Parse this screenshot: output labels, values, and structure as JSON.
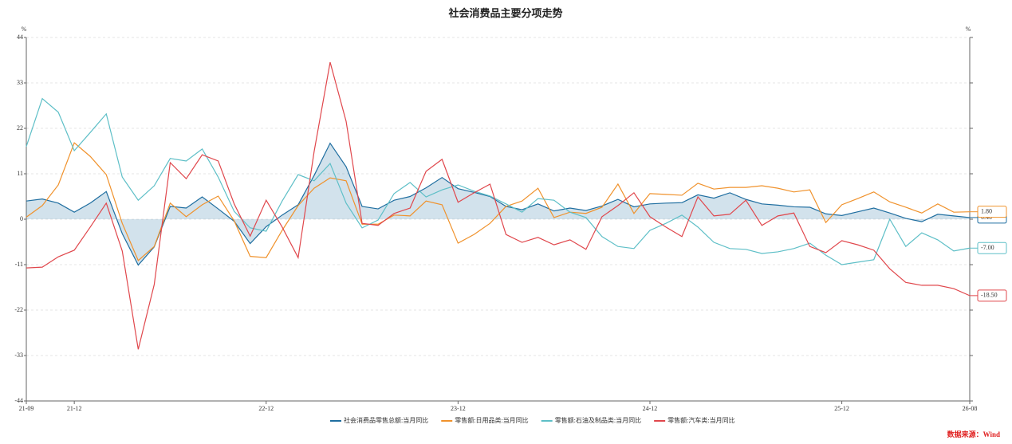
{
  "chart_data": {
    "type": "line",
    "title": "社会消费品主要分项走势",
    "ylabel": "%",
    "y2label": "%",
    "source": "数据来源：Wind",
    "categories": [
      "21-09",
      null,
      null,
      "21-12",
      null,
      null,
      null,
      null,
      null,
      null,
      null,
      null,
      null,
      null,
      null,
      "22-12",
      null,
      null,
      null,
      null,
      null,
      null,
      null,
      null,
      null,
      null,
      null,
      "23-12",
      null,
      null,
      null,
      null,
      null,
      null,
      null,
      null,
      null,
      null,
      null,
      "24-12",
      null,
      null,
      null,
      null,
      null,
      null,
      null,
      null,
      null,
      null,
      null,
      "25-12",
      null,
      null,
      null,
      null,
      null,
      null,
      null,
      "26-08"
    ],
    "ylim": [
      -44,
      44
    ],
    "yticks": [
      -44,
      -33,
      -22,
      -11,
      0,
      11,
      22,
      33,
      44
    ],
    "grid": true,
    "series": [
      {
        "name": "社会消费品零售总额:当月同比",
        "color": "#1f6ea0",
        "area": true,
        "values": [
          4.4,
          4.9,
          3.9,
          1.7,
          3.9,
          6.7,
          -3.5,
          -11.1,
          -6.7,
          3.1,
          2.7,
          5.4,
          2.5,
          -0.5,
          -5.9,
          -1.8,
          1.0,
          3.5,
          10.6,
          18.4,
          12.7,
          3.1,
          2.5,
          4.6,
          5.5,
          7.6,
          10.1,
          7.4,
          6.5,
          5.5,
          3.1,
          2.3,
          3.7,
          2.0,
          2.7,
          2.1,
          3.2,
          4.8,
          3.0,
          3.7,
          3.9,
          4.0,
          5.9,
          5.1,
          6.4,
          4.8,
          3.7,
          3.4,
          3.0,
          2.9,
          1.3,
          0.9,
          1.8,
          2.7,
          1.5,
          0.2,
          -0.6,
          1.2,
          0.8,
          0.4
        ],
        "value_labels": [
          null,
          null,
          null,
          null,
          null,
          null,
          null,
          null,
          null,
          null,
          null,
          null,
          null,
          null,
          null,
          null,
          null,
          null,
          null,
          null,
          null,
          null,
          null,
          null,
          null,
          null,
          null,
          null,
          null,
          null,
          null,
          null,
          null,
          null,
          null,
          null,
          null,
          null,
          null,
          null,
          null,
          null,
          null,
          null,
          null,
          null,
          null,
          null,
          null,
          null,
          null,
          null,
          null,
          null,
          null,
          null,
          null,
          null,
          null,
          "0.40"
        ]
      },
      {
        "name": "零售额:日用品类:当月同比",
        "color": "#f0922c",
        "values": [
          0.5,
          3.3,
          8.3,
          18.5,
          15.2,
          10.8,
          -1.0,
          -10.0,
          -6.6,
          3.9,
          0.6,
          3.5,
          5.6,
          -0.4,
          -9.0,
          -9.3,
          -2.7,
          3.3,
          7.5,
          10.0,
          9.3,
          -1.2,
          -1.2,
          1.0,
          0.8,
          4.4,
          3.5,
          -5.8,
          -3.7,
          -1.0,
          3.1,
          4.4,
          7.5,
          0.4,
          1.7,
          1.4,
          2.9,
          8.5,
          1.4,
          6.2,
          6.0,
          5.8,
          8.7,
          7.3,
          7.7,
          7.7,
          8.1,
          7.5,
          6.6,
          7.1,
          -0.8,
          3.5,
          5.0,
          6.6,
          4.2,
          2.9,
          1.5,
          3.7,
          1.7,
          1.8
        ],
        "value_labels": [
          null,
          null,
          null,
          null,
          null,
          null,
          null,
          null,
          null,
          null,
          null,
          null,
          null,
          null,
          null,
          null,
          null,
          null,
          null,
          null,
          null,
          null,
          null,
          null,
          null,
          null,
          null,
          null,
          null,
          null,
          null,
          null,
          null,
          null,
          null,
          null,
          null,
          null,
          null,
          null,
          null,
          null,
          null,
          null,
          null,
          null,
          null,
          null,
          null,
          null,
          null,
          null,
          null,
          null,
          null,
          null,
          null,
          null,
          null,
          "1.80"
        ]
      },
      {
        "name": "零售额:石油及制品类:当月同比",
        "color": "#5ebfc7",
        "values": [
          17.6,
          29.2,
          25.9,
          16.6,
          21.0,
          25.5,
          10.2,
          4.6,
          8.1,
          14.7,
          14.1,
          17.0,
          10.2,
          1.9,
          -2.1,
          -2.9,
          4.4,
          10.8,
          9.3,
          13.5,
          3.9,
          -2.1,
          -0.2,
          6.2,
          8.9,
          5.4,
          7.1,
          8.3,
          6.8,
          5.6,
          3.7,
          1.7,
          5.0,
          4.6,
          1.7,
          0.4,
          -4.2,
          -6.6,
          -7.1,
          -2.7,
          -1.0,
          1.0,
          -1.9,
          -5.6,
          -7.1,
          -7.3,
          -8.3,
          -7.9,
          -7.1,
          -5.8,
          -8.7,
          -11.0,
          -10.4,
          -9.8,
          0.0,
          -6.6,
          -3.3,
          -5.0,
          -7.7,
          -7.0
        ],
        "value_labels": [
          null,
          null,
          null,
          null,
          null,
          null,
          null,
          null,
          null,
          null,
          null,
          null,
          null,
          null,
          null,
          null,
          null,
          null,
          null,
          null,
          null,
          null,
          null,
          null,
          null,
          null,
          null,
          null,
          null,
          null,
          null,
          null,
          null,
          null,
          null,
          null,
          null,
          null,
          null,
          null,
          null,
          null,
          null,
          null,
          null,
          null,
          null,
          null,
          null,
          null,
          null,
          null,
          null,
          null,
          null,
          null,
          null,
          null,
          null,
          "-7.00"
        ]
      },
      {
        "name": "零售额:汽车类:当月同比",
        "color": "#e0474c",
        "values": [
          -11.8,
          -11.6,
          -9.1,
          -7.5,
          -1.9,
          3.9,
          -7.7,
          -31.5,
          -15.8,
          13.7,
          9.8,
          15.6,
          14.1,
          3.7,
          -4.1,
          4.6,
          -1.9,
          -9.3,
          16.4,
          38.0,
          23.7,
          -1.0,
          -1.5,
          1.4,
          2.7,
          11.6,
          14.5,
          4.1,
          6.4,
          8.5,
          -3.7,
          -5.6,
          -4.4,
          -6.2,
          -5.0,
          -7.3,
          0.6,
          3.3,
          6.4,
          0.6,
          -1.9,
          -4.2,
          5.4,
          0.8,
          1.2,
          4.6,
          -1.5,
          0.8,
          1.5,
          -6.6,
          -8.1,
          -5.2,
          -6.2,
          -7.5,
          -12.0,
          -15.3,
          -16.0,
          -16.0,
          -16.8,
          -18.5
        ],
        "value_labels": [
          null,
          null,
          null,
          null,
          null,
          null,
          null,
          null,
          null,
          null,
          null,
          null,
          null,
          null,
          null,
          null,
          null,
          null,
          null,
          null,
          null,
          null,
          null,
          null,
          null,
          null,
          null,
          null,
          null,
          null,
          null,
          null,
          null,
          null,
          null,
          null,
          null,
          null,
          null,
          null,
          null,
          null,
          null,
          null,
          null,
          null,
          null,
          null,
          null,
          null,
          null,
          null,
          null,
          null,
          null,
          null,
          null,
          null,
          null,
          "-18.50"
        ]
      }
    ]
  }
}
